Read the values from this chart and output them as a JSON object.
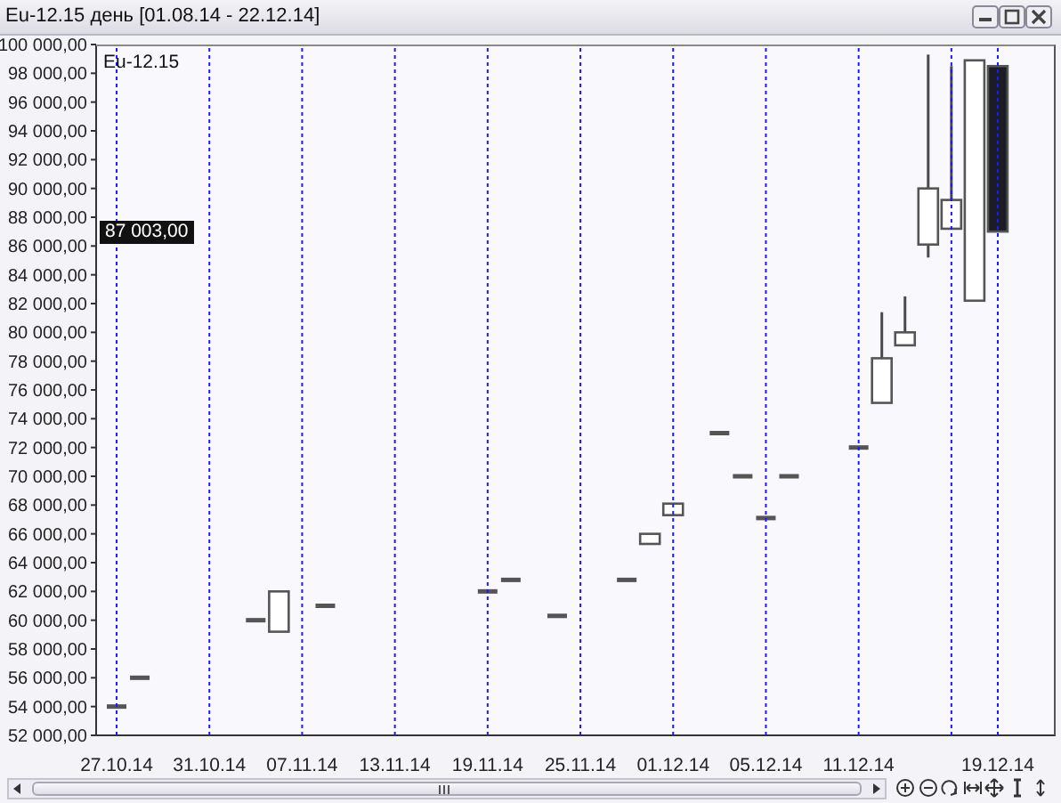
{
  "chart_data": {
    "type": "candlestick",
    "title": "Eu-12.15 день [01.08.14 - 22.12.14]",
    "subtitle": "Eu-12.15",
    "categories": [
      "27.10.14",
      null,
      null,
      null,
      "31.10.14",
      null,
      null,
      null,
      "07.11.14",
      null,
      null,
      null,
      "13.11.14",
      null,
      null,
      null,
      "19.11.14",
      null,
      null,
      null,
      "25.11.14",
      null,
      null,
      null,
      "01.12.14",
      null,
      null,
      null,
      "05.12.14",
      null,
      null,
      null,
      "11.12.14",
      null,
      null,
      null,
      null,
      null,
      "19.12.14"
    ],
    "ohlc": [
      [
        54000,
        54000,
        54000,
        54000
      ],
      [
        56000,
        56000,
        56000,
        56000
      ],
      null,
      null,
      null,
      null,
      [
        60000,
        60000,
        60000,
        60000
      ],
      [
        59200,
        62000,
        59200,
        62000
      ],
      null,
      [
        61000,
        61000,
        61000,
        61000
      ],
      null,
      null,
      null,
      null,
      null,
      null,
      [
        62000,
        62000,
        62000,
        62000
      ],
      [
        62800,
        62800,
        62800,
        62800
      ],
      null,
      [
        60300,
        60300,
        60300,
        60300
      ],
      null,
      null,
      [
        62800,
        62800,
        62800,
        62800
      ],
      [
        65300,
        66000,
        65300,
        66000
      ],
      [
        67300,
        68100,
        67300,
        68100
      ],
      null,
      [
        73000,
        73000,
        73000,
        73000
      ],
      [
        70000,
        70000,
        70000,
        70000
      ],
      [
        67100,
        67100,
        67100,
        67100
      ],
      [
        70000,
        70000,
        70000,
        70000
      ],
      null,
      null,
      [
        72000,
        72000,
        72000,
        72000
      ],
      [
        75100,
        81400,
        75100,
        78200
      ],
      [
        79100,
        82500,
        79100,
        80000
      ],
      [
        86100,
        99300,
        85200,
        90000
      ],
      [
        87200,
        98500,
        87200,
        89200
      ],
      [
        82200,
        98900,
        82200,
        98900
      ],
      [
        98500,
        98500,
        87003,
        87003
      ]
    ],
    "ylim": [
      52000,
      100000
    ],
    "yticks": [
      {
        "value": 52000,
        "label": "52 000,00"
      },
      {
        "value": 54000,
        "label": "54 000,00"
      },
      {
        "value": 56000,
        "label": "56 000,00"
      },
      {
        "value": 58000,
        "label": "58 000,00"
      },
      {
        "value": 60000,
        "label": "60 000,00"
      },
      {
        "value": 62000,
        "label": "62 000,00"
      },
      {
        "value": 64000,
        "label": "64 000,00"
      },
      {
        "value": 66000,
        "label": "66 000,00"
      },
      {
        "value": 68000,
        "label": "68 000,00"
      },
      {
        "value": 70000,
        "label": "70 000,00"
      },
      {
        "value": 72000,
        "label": "72 000,00"
      },
      {
        "value": 74000,
        "label": "74 000,00"
      },
      {
        "value": 76000,
        "label": "76 000,00"
      },
      {
        "value": 78000,
        "label": "78 000,00"
      },
      {
        "value": 80000,
        "label": "80 000,00"
      },
      {
        "value": 82000,
        "label": "82 000,00"
      },
      {
        "value": 84000,
        "label": "84 000,00"
      },
      {
        "value": 86000,
        "label": "86 000,00"
      },
      {
        "value": 88000,
        "label": "88 000,00"
      },
      {
        "value": 90000,
        "label": "90 000,00"
      },
      {
        "value": 92000,
        "label": "92 000,00"
      },
      {
        "value": 94000,
        "label": "94 000,00"
      },
      {
        "value": 96000,
        "label": "96 000,00"
      },
      {
        "value": 98000,
        "label": "98 000,00"
      },
      {
        "value": 100000,
        "label": "100 000,00"
      }
    ],
    "grid": "x",
    "annotations": [
      "87 003,00"
    ]
  }
}
